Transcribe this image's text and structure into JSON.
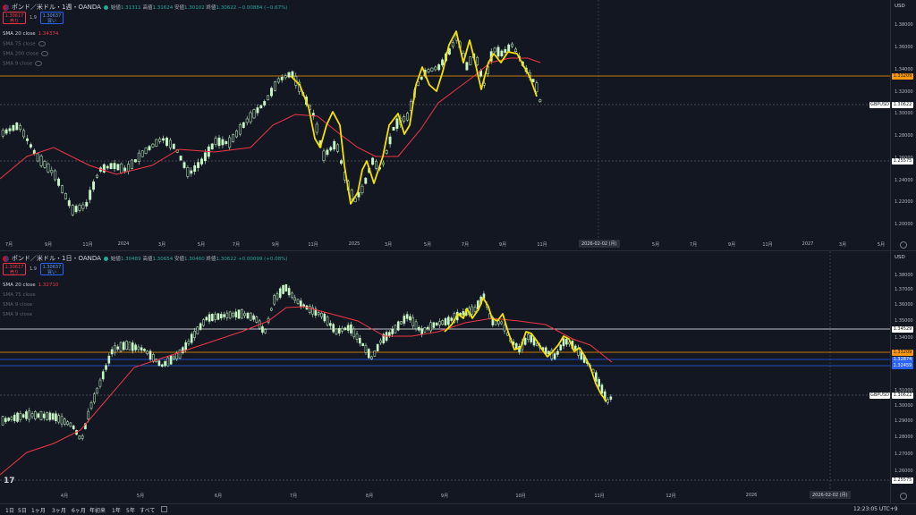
{
  "charts": [
    {
      "symbol": "ポンド／米ドル・1週・OANDA",
      "ohlc": {
        "open_label": "始値",
        "open": "1.31311",
        "high_label": "高値",
        "high": "1.31624",
        "low_label": "安値",
        "low": "1.30102",
        "close_label": "終値",
        "close": "1.30622",
        "change": "−0.00884 (−0.67%)"
      },
      "sell": {
        "price": "1.30617",
        "label": "売り"
      },
      "spread": "1.9",
      "buy": {
        "price": "1.30637",
        "label": "買い"
      },
      "indicators": [
        {
          "label": "SMA 20 close",
          "value": "1.34374"
        },
        {
          "label": "SMA 75 close",
          "value": ""
        },
        {
          "label": "SMA 200 close",
          "value": ""
        },
        {
          "label": "SMA 9 close",
          "value": ""
        }
      ],
      "currency": "USD",
      "y_ticks": [
        "1.38000",
        "1.36000",
        "1.34000",
        "1.32000",
        "1.30000",
        "1.28000",
        "1.26000",
        "1.24000",
        "1.22000",
        "1.20000"
      ],
      "price_tags": {
        "orange": "1.33209",
        "symbol": "GBPUSD",
        "last": "1.30622",
        "dashed": "1.25575"
      },
      "x_ticks": [
        "7月",
        "9月",
        "11月",
        "2024",
        "3月",
        "5月",
        "7月",
        "9月",
        "11月",
        "2025",
        "3月",
        "5月",
        "7月",
        "9月",
        "11月",
        "5月",
        "7月",
        "9月",
        "11月",
        "2027",
        "3月",
        "5月"
      ],
      "x_cursor_label": "2026-02-02 (月)",
      "colors": {
        "ma": "#f23645",
        "hand": "#f5e100",
        "candle_up": "#c8f7c5",
        "candle_down": "#c8f7c5",
        "orange": "#ff9800"
      }
    },
    {
      "symbol": "ポンド／米ドル・1日・OANDA",
      "ohlc": {
        "open_label": "始値",
        "open": "1.30489",
        "high_label": "高値",
        "high": "1.30654",
        "low_label": "安値",
        "low": "1.30460",
        "close_label": "終値",
        "close": "1.30622",
        "change": "+0.00099 (+0.08%)"
      },
      "sell": {
        "price": "1.30617",
        "label": "売り"
      },
      "spread": "1.9",
      "buy": {
        "price": "1.30637",
        "label": "買い"
      },
      "indicators": [
        {
          "label": "SMA 20 close",
          "value": "1.32710"
        },
        {
          "label": "SMA 75 close",
          "value": ""
        },
        {
          "label": "SMA 9 close",
          "value": ""
        },
        {
          "label": "SMA 9 close",
          "value": ""
        }
      ],
      "currency": "USD",
      "y_ticks": [
        "1.38000",
        "1.37000",
        "1.36000",
        "1.35000",
        "1.34000",
        "1.32000",
        "1.31000",
        "1.30000",
        "1.29000",
        "1.28000",
        "1.27000",
        "1.26000"
      ],
      "price_tags": {
        "white": "1.34529",
        "orange": "1.33209",
        "blue1": "1.32874",
        "blue2": "1.32459",
        "symbol": "GBPUSD",
        "last": "1.30622",
        "dashed": "1.25575"
      },
      "x_ticks": [
        "4月",
        "5月",
        "6月",
        "7月",
        "8月",
        "9月",
        "10月",
        "11月",
        "12月",
        "2026"
      ],
      "x_cursor_label": "2026-02-02 (月)",
      "colors": {
        "ma": "#f23645",
        "hand": "#f5e100",
        "orange": "#ff9800",
        "blue": "#2962ff",
        "white": "#ffffff"
      }
    }
  ],
  "timeframes": [
    "1日",
    "5日",
    "1ヶ月",
    "3ヶ月",
    "6ヶ月",
    "年初来",
    "1年",
    "5年",
    "すべて"
  ],
  "clock": "12:23:05 UTC+9",
  "logo": "17"
}
